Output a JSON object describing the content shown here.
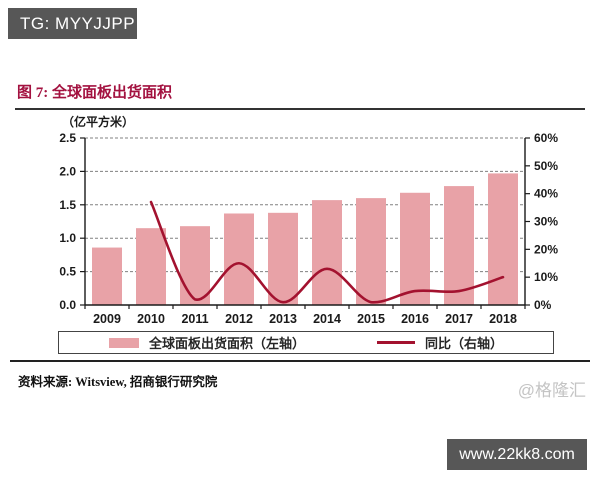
{
  "page": {
    "header_badge": "TG: MYYJJPP",
    "footer_badge": "www.22kk8.com",
    "watermark": "@格隆汇",
    "source": "资料来源: Witsview, 招商银行研究院"
  },
  "figure": {
    "title": "图 7: 全球面板出货面积"
  },
  "colors": {
    "title_accent": "#a31240",
    "bar_fill": "#e8a2a7",
    "line_stroke": "#a3122f",
    "badge_bg": "#575757",
    "watermark_gray": "#c4c4c4"
  },
  "chart_data": {
    "type": "bar",
    "subtype": "bar+line dual axis",
    "categories": [
      "2009",
      "2010",
      "2011",
      "2012",
      "2013",
      "2014",
      "2015",
      "2016",
      "2017",
      "2018"
    ],
    "series": [
      {
        "name": "全球面板出货面积（左轴）",
        "type": "bar",
        "axis": "left",
        "color": "#e8a2a7",
        "values": [
          0.86,
          1.15,
          1.18,
          1.37,
          1.38,
          1.57,
          1.6,
          1.68,
          1.78,
          1.97
        ]
      },
      {
        "name": "同比（右轴）",
        "type": "line",
        "axis": "right",
        "color": "#a3122f",
        "x": [
          "2010",
          "2011",
          "2012",
          "2013",
          "2014",
          "2015",
          "2016",
          "2017",
          "2018"
        ],
        "values": [
          37,
          2,
          15,
          1,
          13,
          1,
          5,
          5,
          10
        ]
      }
    ],
    "left_axis": {
      "label": "（亿平方米）",
      "min": 0,
      "max": 2.5,
      "ticks": [
        "0.0",
        "0.5",
        "1.0",
        "1.5",
        "2.0",
        "2.5"
      ]
    },
    "right_axis": {
      "min": 0,
      "max": 60,
      "ticks": [
        "0%",
        "10%",
        "20%",
        "30%",
        "40%",
        "50%",
        "60%"
      ]
    },
    "grid": "horizontal dashed",
    "legend_position": "bottom boxed"
  },
  "legend": {
    "items": [
      {
        "label": "全球面板出货面积（左轴）",
        "swatch": "bar"
      },
      {
        "label": "同比（右轴）",
        "swatch": "line"
      }
    ]
  }
}
